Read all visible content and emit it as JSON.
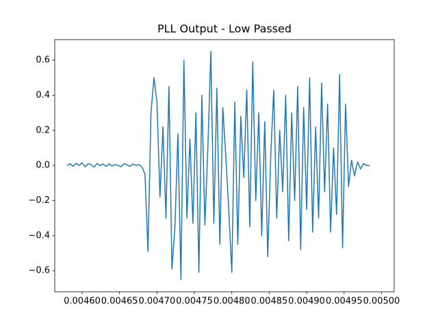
{
  "chart_data": {
    "type": "line",
    "title": "PLL Output - Low Passed",
    "x": [
      0.00458,
      0.004584,
      0.004588,
      0.004592,
      0.004596,
      0.0046,
      0.004604,
      0.004608,
      0.004612,
      0.004616,
      0.00462,
      0.004624,
      0.004628,
      0.004632,
      0.004636,
      0.00464,
      0.004644,
      0.004648,
      0.004652,
      0.004656,
      0.00466,
      0.004664,
      0.004668,
      0.004672,
      0.004676,
      0.00468,
      0.004684,
      0.004688,
      0.004692,
      0.004696,
      0.0047,
      0.004704,
      0.004708,
      0.004712,
      0.004716,
      0.00472,
      0.004724,
      0.004728,
      0.004732,
      0.004736,
      0.00474,
      0.004744,
      0.004748,
      0.004752,
      0.004756,
      0.00476,
      0.004764,
      0.004768,
      0.004772,
      0.004776,
      0.00478,
      0.004784,
      0.004788,
      0.004792,
      0.004796,
      0.0048,
      0.004804,
      0.004808,
      0.004812,
      0.004816,
      0.00482,
      0.004824,
      0.004828,
      0.004832,
      0.004836,
      0.00484,
      0.004844,
      0.004848,
      0.004852,
      0.004856,
      0.00486,
      0.004864,
      0.004868,
      0.004872,
      0.004876,
      0.00488,
      0.004884,
      0.004888,
      0.004892,
      0.004896,
      0.0049,
      0.004904,
      0.004908,
      0.004912,
      0.004916,
      0.00492,
      0.004924,
      0.004928,
      0.004932,
      0.004936,
      0.00494,
      0.004944,
      0.004948,
      0.004952,
      0.004956,
      0.00496,
      0.004964,
      0.004968,
      0.004972,
      0.004976,
      0.00498,
      0.004984
    ],
    "series": [
      {
        "color": "#1f77b4",
        "values": [
          0.0,
          0.01,
          -0.005,
          0.012,
          0.0,
          0.015,
          -0.008,
          0.01,
          0.005,
          -0.01,
          0.012,
          0.0,
          0.008,
          -0.006,
          0.01,
          -0.004,
          0.006,
          0.0,
          -0.008,
          0.01,
          0.003,
          -0.005,
          0.008,
          0.0,
          0.005,
          -0.01,
          -0.05,
          -0.49,
          0.3,
          0.5,
          0.36,
          -0.18,
          0.22,
          -0.3,
          0.45,
          -0.59,
          -0.35,
          0.18,
          -0.65,
          0.6,
          -0.3,
          0.15,
          -0.33,
          0.3,
          -0.61,
          0.4,
          -0.34,
          0.1,
          0.65,
          -0.33,
          0.44,
          -0.45,
          0.33,
          0.05,
          -0.26,
          -0.61,
          0.36,
          -0.45,
          0.28,
          -0.07,
          0.43,
          -0.35,
          0.59,
          -0.2,
          0.3,
          -0.4,
          0.25,
          -0.52,
          0.05,
          0.43,
          -0.3,
          0.2,
          -0.15,
          0.4,
          -0.43,
          0.3,
          -0.2,
          0.45,
          -0.48,
          0.33,
          -0.25,
          0.5,
          -0.38,
          0.22,
          -0.3,
          0.47,
          -0.15,
          0.35,
          -0.38,
          0.1,
          -0.28,
          0.52,
          -0.47,
          0.35,
          -0.12,
          0.03,
          -0.06,
          0.02,
          -0.02,
          0.01,
          0.0,
          0.0
        ]
      }
    ],
    "xlim": [
      0.0045634,
      0.005017
    ],
    "ylim": [
      -0.72,
      0.717
    ],
    "xticks": [
      {
        "value": 0.0046,
        "label": "0.00460"
      },
      {
        "value": 0.00465,
        "label": "0.00465"
      },
      {
        "value": 0.0047,
        "label": "0.00470"
      },
      {
        "value": 0.00475,
        "label": "0.00475"
      },
      {
        "value": 0.0048,
        "label": "0.00480"
      },
      {
        "value": 0.00485,
        "label": "0.00485"
      },
      {
        "value": 0.0049,
        "label": "0.00490"
      },
      {
        "value": 0.00495,
        "label": "0.00495"
      },
      {
        "value": 0.005,
        "label": "0.00500"
      }
    ],
    "yticks": [
      {
        "value": -0.6,
        "label": "−0.6"
      },
      {
        "value": -0.4,
        "label": "−0.4"
      },
      {
        "value": -0.2,
        "label": "−0.2"
      },
      {
        "value": 0,
        "label": "0.0"
      },
      0.2,
      0.4,
      0.6
    ],
    "grid": false
  }
}
